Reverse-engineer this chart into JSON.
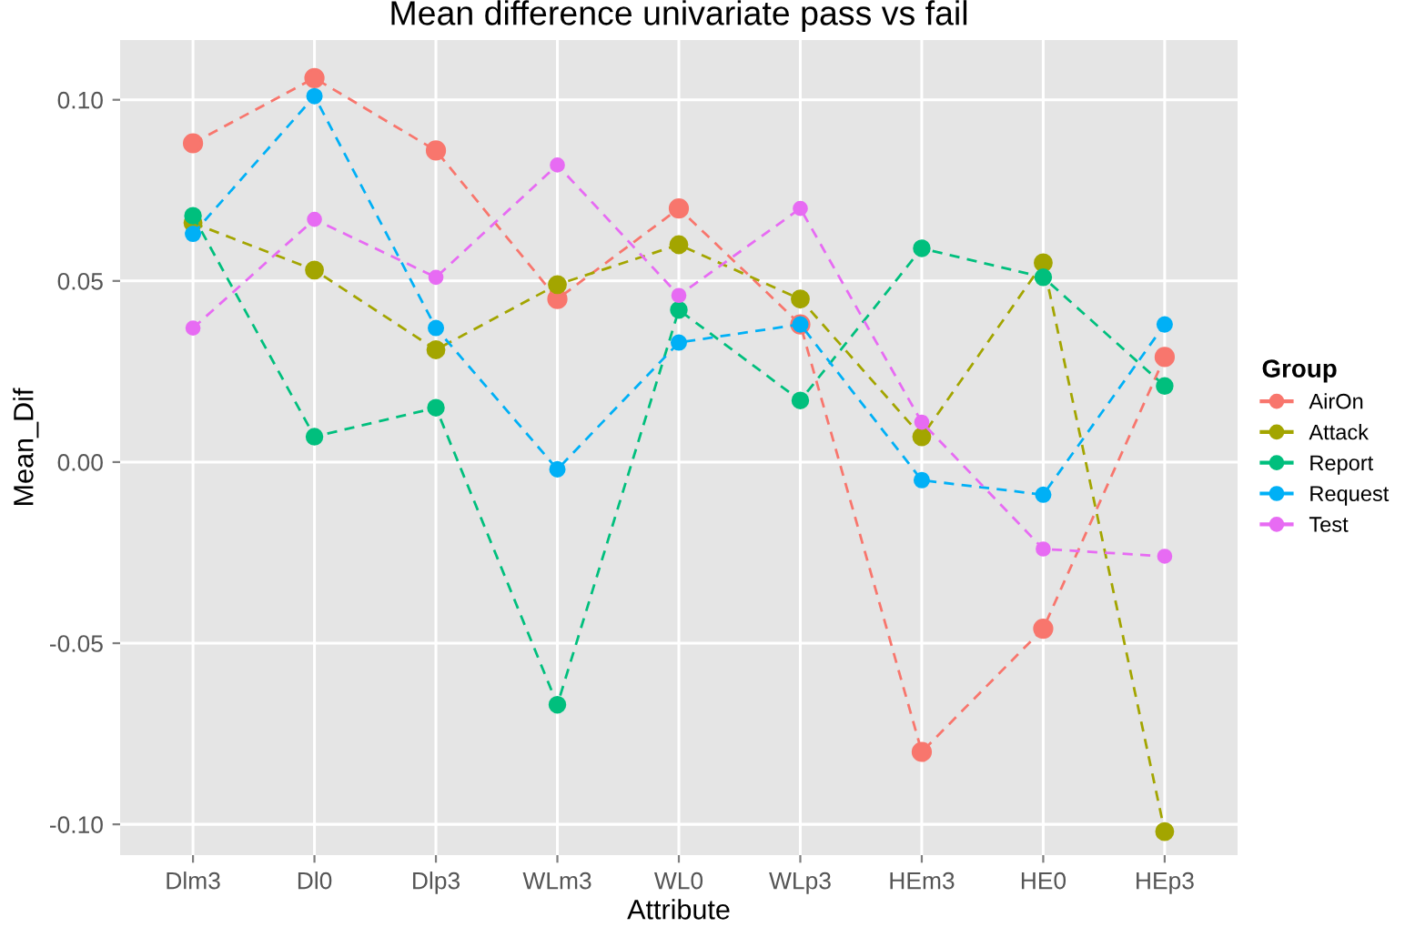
{
  "chart_data": {
    "type": "line",
    "title": "Mean difference univariate pass vs fail",
    "xlabel": "Attribute",
    "ylabel": "Mean_Dif",
    "legend_title": "Group",
    "categories": [
      "Dlm3",
      "Dl0",
      "Dlp3",
      "WLm3",
      "WL0",
      "WLp3",
      "HEm3",
      "HE0",
      "HEp3"
    ],
    "series": [
      {
        "name": "AirOn",
        "color": "#f8766d",
        "values": [
          0.088,
          0.106,
          0.086,
          0.045,
          0.07,
          0.038,
          -0.08,
          -0.046,
          0.029
        ]
      },
      {
        "name": "Attack",
        "color": "#a3a500",
        "values": [
          0.066,
          0.053,
          0.031,
          0.049,
          0.06,
          0.045,
          0.007,
          0.055,
          -0.102
        ]
      },
      {
        "name": "Report",
        "color": "#00bf7d",
        "values": [
          0.068,
          0.007,
          0.015,
          -0.067,
          0.042,
          0.017,
          0.059,
          0.051,
          0.021
        ]
      },
      {
        "name": "Request",
        "color": "#00b0f6",
        "values": [
          0.063,
          0.101,
          0.037,
          -0.002,
          0.033,
          0.038,
          -0.005,
          -0.009,
          0.038
        ]
      },
      {
        "name": "Test",
        "color": "#e76bf3",
        "values": [
          0.037,
          0.067,
          0.051,
          0.082,
          0.046,
          0.07,
          0.011,
          -0.024,
          -0.026
        ]
      }
    ],
    "ylim": [
      -0.1085,
      0.1165
    ],
    "yticks": [
      {
        "value": -0.1,
        "label": "-0.10"
      },
      {
        "value": -0.05,
        "label": "-0.05"
      },
      {
        "value": 0,
        "label": "0.00"
      },
      {
        "value": 0.05,
        "label": "0.05"
      },
      {
        "value": 0.1,
        "label": "0.10"
      }
    ],
    "grid": true,
    "legend": "right",
    "marker": "circle",
    "line_style": "dashed"
  }
}
